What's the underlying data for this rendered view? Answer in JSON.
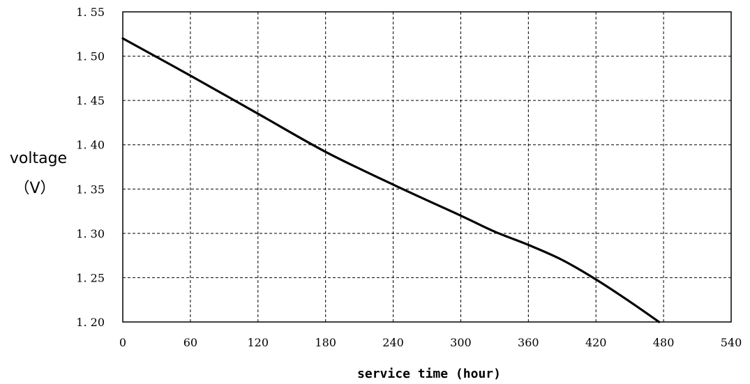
{
  "chart_data": {
    "type": "line",
    "title": "",
    "xlabel": "service time (hour)",
    "ylabel_line1": "voltage",
    "ylabel_line2": "（V）",
    "xlim": [
      0,
      540
    ],
    "ylim": [
      1.2,
      1.55
    ],
    "x_ticks": [
      "0",
      "60",
      "120",
      "180",
      "240",
      "300",
      "360",
      "420",
      "480",
      "540"
    ],
    "y_ticks": [
      "1. 20",
      "1. 25",
      "1. 30",
      "1. 35",
      "1. 40",
      "1. 45",
      "1. 50",
      "1. 55"
    ],
    "grid": true,
    "grid_style": "dashed",
    "line_color": "#000000",
    "series": [
      {
        "x": [
          0,
          60,
          120,
          180,
          240,
          300,
          330,
          360,
          390,
          420,
          450,
          476
        ],
        "values": [
          1.52,
          1.478,
          1.435,
          1.392,
          1.355,
          1.32,
          1.302,
          1.287,
          1.27,
          1.248,
          1.223,
          1.2
        ]
      }
    ]
  }
}
